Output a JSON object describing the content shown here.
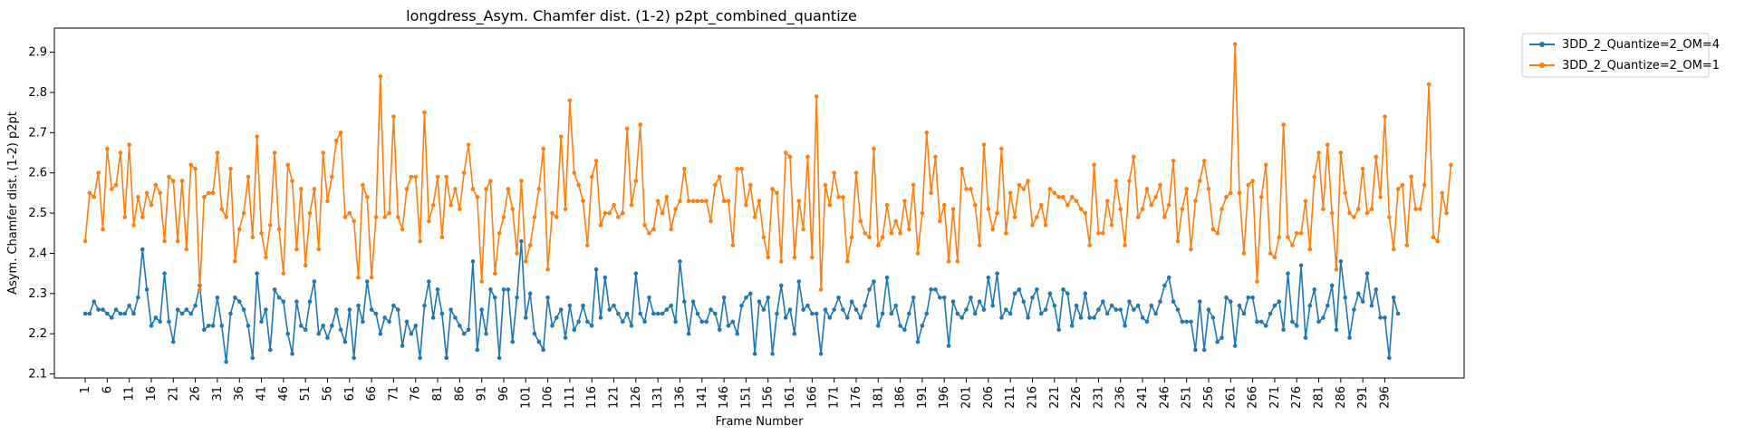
{
  "chart_data": {
    "type": "line",
    "title": "longdress_Asym. Chamfer dist. (1-2) p2pt_combined_quantize",
    "xlabel": "Frame Number",
    "ylabel": "Asym. Chamfer dist. (1-2) p2pt",
    "xlim": [
      -6,
      314
    ],
    "ylim": [
      2.09,
      2.96
    ],
    "x_ticks": [
      1,
      6,
      11,
      16,
      21,
      26,
      31,
      36,
      41,
      46,
      51,
      56,
      61,
      66,
      71,
      76,
      81,
      86,
      91,
      96,
      101,
      106,
      111,
      116,
      121,
      126,
      131,
      136,
      141,
      146,
      151,
      156,
      161,
      166,
      171,
      176,
      181,
      186,
      191,
      196,
      201,
      206,
      211,
      216,
      221,
      226,
      231,
      236,
      241,
      246,
      251,
      256,
      261,
      266,
      271,
      276,
      281,
      286,
      291,
      296
    ],
    "y_ticks": [
      2.1,
      2.2,
      2.3,
      2.4,
      2.5,
      2.6,
      2.7,
      2.8,
      2.9
    ],
    "legend_placement": "outside-top-right",
    "grid": false,
    "series": [
      {
        "name": "3DD_2_Quantize=2_OM=4",
        "color": "#1f77b4",
        "values": [
          2.25,
          2.25,
          2.28,
          2.26,
          2.26,
          2.25,
          2.24,
          2.26,
          2.25,
          2.25,
          2.27,
          2.25,
          2.29,
          2.41,
          2.31,
          2.22,
          2.24,
          2.23,
          2.35,
          2.23,
          2.18,
          2.26,
          2.25,
          2.26,
          2.25,
          2.27,
          2.32,
          2.21,
          2.22,
          2.22,
          2.29,
          2.22,
          2.13,
          2.25,
          2.29,
          2.28,
          2.26,
          2.22,
          2.14,
          2.35,
          2.23,
          2.26,
          2.16,
          2.31,
          2.29,
          2.28,
          2.2,
          2.15,
          2.28,
          2.22,
          2.21,
          2.28,
          2.33,
          2.2,
          2.22,
          2.19,
          2.22,
          2.26,
          2.21,
          2.18,
          2.26,
          2.14,
          2.27,
          2.23,
          2.33,
          2.26,
          2.25,
          2.2,
          2.24,
          2.23,
          2.27,
          2.26,
          2.17,
          2.23,
          2.2,
          2.22,
          2.14,
          2.27,
          2.33,
          2.24,
          2.31,
          2.25,
          2.14,
          2.26,
          2.24,
          2.22,
          2.2,
          2.21,
          2.38,
          2.16,
          2.26,
          2.2,
          2.31,
          2.29,
          2.14,
          2.31,
          2.31,
          2.18,
          2.29,
          2.43,
          2.24,
          2.3,
          2.2,
          2.18,
          2.16,
          2.29,
          2.22,
          2.24,
          2.26,
          2.19,
          2.27,
          2.21,
          2.23,
          2.27,
          2.23,
          2.22,
          2.36,
          2.24,
          2.34,
          2.26,
          2.27,
          2.25,
          2.23,
          2.25,
          2.22,
          2.35,
          2.25,
          2.23,
          2.29,
          2.25,
          2.25,
          2.25,
          2.26,
          2.27,
          2.23,
          2.38,
          2.28,
          2.2,
          2.28,
          2.25,
          2.23,
          2.23,
          2.26,
          2.25,
          2.21,
          2.29,
          2.22,
          2.23,
          2.2,
          2.27,
          2.29,
          2.3,
          2.15,
          2.28,
          2.26,
          2.29,
          2.15,
          2.25,
          2.32,
          2.24,
          2.26,
          2.2,
          2.33,
          2.26,
          2.27,
          2.25,
          2.25,
          2.15,
          2.26,
          2.24,
          2.26,
          2.29,
          2.26,
          2.24,
          2.28,
          2.26,
          2.24,
          2.27,
          2.31,
          2.33,
          2.22,
          2.25,
          2.34,
          2.25,
          2.27,
          2.22,
          2.21,
          2.25,
          2.29,
          2.18,
          2.22,
          2.25,
          2.31,
          2.31,
          2.29,
          2.29,
          2.17,
          2.28,
          2.25,
          2.24,
          2.26,
          2.29,
          2.25,
          2.28,
          2.26,
          2.34,
          2.27,
          2.35,
          2.24,
          2.26,
          2.25,
          2.3,
          2.31,
          2.28,
          2.24,
          2.29,
          2.31,
          2.25,
          2.26,
          2.3,
          2.27,
          2.21,
          2.31,
          2.3,
          2.22,
          2.27,
          2.24,
          2.3,
          2.24,
          2.24,
          2.26,
          2.28,
          2.25,
          2.27,
          2.26,
          2.26,
          2.22,
          2.28,
          2.26,
          2.27,
          2.24,
          2.23,
          2.27,
          2.25,
          2.28,
          2.32,
          2.34,
          2.28,
          2.26,
          2.23,
          2.23,
          2.23,
          2.16,
          2.28,
          2.16,
          2.26,
          2.24,
          2.18,
          2.19,
          2.29,
          2.28,
          2.17,
          2.27,
          2.25,
          2.29,
          2.29,
          2.23,
          2.23,
          2.22,
          2.25,
          2.27,
          2.28,
          2.21,
          2.35,
          2.23,
          2.22,
          2.37,
          2.19,
          2.27,
          2.31,
          2.23,
          2.24,
          2.27,
          2.32,
          2.21,
          2.38,
          2.29,
          2.19,
          2.26,
          2.3,
          2.28,
          2.35,
          2.27,
          2.31,
          2.24,
          2.24,
          2.14,
          2.29,
          2.25
        ]
      },
      {
        "name": "3DD_2_Quantize=2_OM=1",
        "color": "#ff7f0e",
        "values": [
          2.43,
          2.55,
          2.54,
          2.6,
          2.46,
          2.66,
          2.56,
          2.57,
          2.65,
          2.49,
          2.67,
          2.47,
          2.54,
          2.49,
          2.55,
          2.52,
          2.57,
          2.55,
          2.43,
          2.59,
          2.58,
          2.43,
          2.58,
          2.41,
          2.62,
          2.61,
          2.31,
          2.54,
          2.55,
          2.55,
          2.65,
          2.51,
          2.49,
          2.61,
          2.38,
          2.46,
          2.5,
          2.59,
          2.44,
          2.69,
          2.45,
          2.39,
          2.47,
          2.65,
          2.46,
          2.35,
          2.62,
          2.58,
          2.41,
          2.56,
          2.37,
          2.5,
          2.56,
          2.41,
          2.65,
          2.53,
          2.59,
          2.68,
          2.7,
          2.49,
          2.5,
          2.48,
          2.34,
          2.57,
          2.54,
          2.34,
          2.49,
          2.84,
          2.49,
          2.5,
          2.74,
          2.49,
          2.46,
          2.56,
          2.59,
          2.59,
          2.43,
          2.75,
          2.48,
          2.52,
          2.59,
          2.44,
          2.59,
          2.52,
          2.56,
          2.51,
          2.6,
          2.67,
          2.56,
          2.54,
          2.33,
          2.56,
          2.58,
          2.35,
          2.45,
          2.49,
          2.56,
          2.51,
          2.4,
          2.58,
          2.38,
          2.42,
          2.49,
          2.56,
          2.66,
          2.36,
          2.5,
          2.49,
          2.69,
          2.51,
          2.78,
          2.6,
          2.57,
          2.53,
          2.42,
          2.59,
          2.63,
          2.47,
          2.5,
          2.5,
          2.52,
          2.49,
          2.5,
          2.71,
          2.52,
          2.58,
          2.72,
          2.47,
          2.45,
          2.46,
          2.53,
          2.5,
          2.54,
          2.46,
          2.51,
          2.53,
          2.61,
          2.53,
          2.53,
          2.53,
          2.53,
          2.53,
          2.48,
          2.57,
          2.59,
          2.53,
          2.53,
          2.42,
          2.61,
          2.61,
          2.52,
          2.57,
          2.49,
          2.53,
          2.44,
          2.39,
          2.56,
          2.55,
          2.38,
          2.65,
          2.64,
          2.39,
          2.53,
          2.46,
          2.64,
          2.39,
          2.79,
          2.31,
          2.57,
          2.52,
          2.6,
          2.54,
          2.54,
          2.38,
          2.44,
          2.6,
          2.48,
          2.45,
          2.44,
          2.66,
          2.42,
          2.44,
          2.52,
          2.45,
          2.48,
          2.45,
          2.53,
          2.46,
          2.57,
          2.4,
          2.5,
          2.7,
          2.55,
          2.64,
          2.48,
          2.52,
          2.38,
          2.51,
          2.38,
          2.61,
          2.56,
          2.56,
          2.52,
          2.42,
          2.67,
          2.51,
          2.46,
          2.5,
          2.66,
          2.45,
          2.55,
          2.49,
          2.57,
          2.56,
          2.58,
          2.47,
          2.49,
          2.52,
          2.47,
          2.56,
          2.55,
          2.54,
          2.54,
          2.52,
          2.54,
          2.53,
          2.51,
          2.5,
          2.42,
          2.62,
          2.45,
          2.45,
          2.53,
          2.47,
          2.58,
          2.51,
          2.42,
          2.58,
          2.64,
          2.49,
          2.51,
          2.56,
          2.52,
          2.54,
          2.57,
          2.49,
          2.52,
          2.63,
          2.43,
          2.51,
          2.56,
          2.41,
          2.53,
          2.58,
          2.63,
          2.56,
          2.46,
          2.45,
          2.51,
          2.54,
          2.55,
          2.92,
          2.55,
          2.4,
          2.57,
          2.58,
          2.33,
          2.54,
          2.62,
          2.4,
          2.39,
          2.44,
          2.72,
          2.44,
          2.42,
          2.45,
          2.45,
          2.53,
          2.41,
          2.59,
          2.65,
          2.51,
          2.67,
          2.5,
          2.36,
          2.65,
          2.55,
          2.5,
          2.49,
          2.51,
          2.61,
          2.5,
          2.51,
          2.64,
          2.54,
          2.74,
          2.49,
          2.41,
          2.56,
          2.57,
          2.42,
          2.59,
          2.51,
          2.51,
          2.57,
          2.82,
          2.44,
          2.43,
          2.55,
          2.5,
          2.62
        ]
      }
    ]
  }
}
